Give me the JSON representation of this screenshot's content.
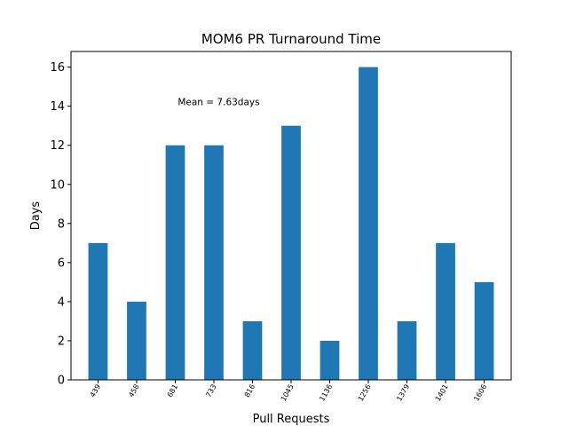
{
  "chart_data": {
    "type": "bar",
    "title": "MOM6 PR Turnaround Time",
    "xlabel": "Pull Requests",
    "ylabel": "Days",
    "categories": [
      "439",
      "458",
      "681",
      "733",
      "816",
      "1045",
      "1136",
      "1256",
      "1379",
      "1401",
      "1606"
    ],
    "values": [
      7,
      4,
      12,
      12,
      3,
      13,
      2,
      16,
      3,
      7,
      5
    ],
    "yticks": [
      0,
      2,
      4,
      6,
      8,
      10,
      12,
      14,
      16
    ],
    "ylim": [
      0,
      16.8
    ],
    "grid": false,
    "legend": "none",
    "bar_color": "#1f77b4",
    "annotation": {
      "text": "Mean = 7.63days",
      "x_category": "681",
      "y": 14
    }
  }
}
